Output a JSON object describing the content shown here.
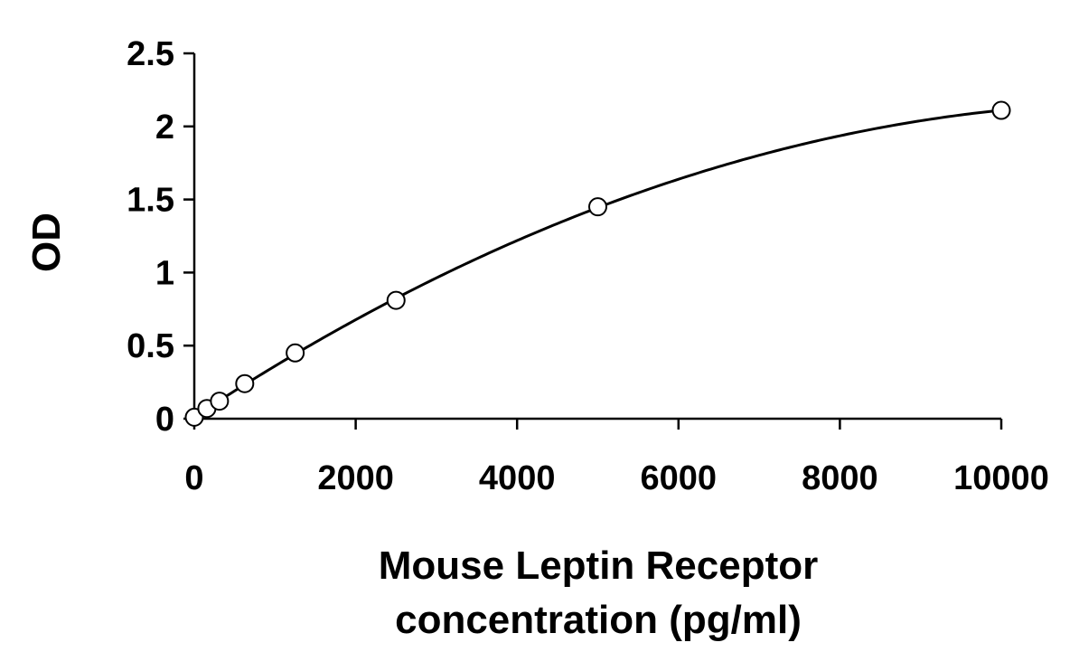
{
  "chart_data": {
    "type": "scatter",
    "title": "",
    "xlabel_lines": [
      "Mouse Leptin Receptor",
      "concentration (pg/ml)"
    ],
    "ylabel": "OD",
    "xlim": [
      0,
      10000
    ],
    "ylim": [
      0,
      2.5
    ],
    "x_ticks": [
      0,
      2000,
      4000,
      6000,
      8000,
      10000
    ],
    "x_tick_labels": [
      "0",
      "2000",
      "4000",
      "6000",
      "8000",
      "10000"
    ],
    "y_ticks": [
      0,
      0.5,
      1,
      1.5,
      2,
      2.5
    ],
    "y_tick_labels": [
      "0",
      "0.5",
      "1",
      "1.5",
      "2",
      "2.5"
    ],
    "grid": false,
    "series": [
      {
        "marker": "open-circle",
        "trendline": "polynomial",
        "points": [
          {
            "x": 0,
            "y": 0.01
          },
          {
            "x": 156,
            "y": 0.07
          },
          {
            "x": 312,
            "y": 0.12
          },
          {
            "x": 625,
            "y": 0.24
          },
          {
            "x": 1250,
            "y": 0.45
          },
          {
            "x": 2500,
            "y": 0.81
          },
          {
            "x": 5000,
            "y": 1.45
          },
          {
            "x": 10000,
            "y": 2.11
          }
        ]
      }
    ],
    "colors": {
      "axis": "#000000",
      "marker_stroke": "#000000",
      "marker_fill": "#ffffff",
      "curve": "#000000"
    }
  }
}
